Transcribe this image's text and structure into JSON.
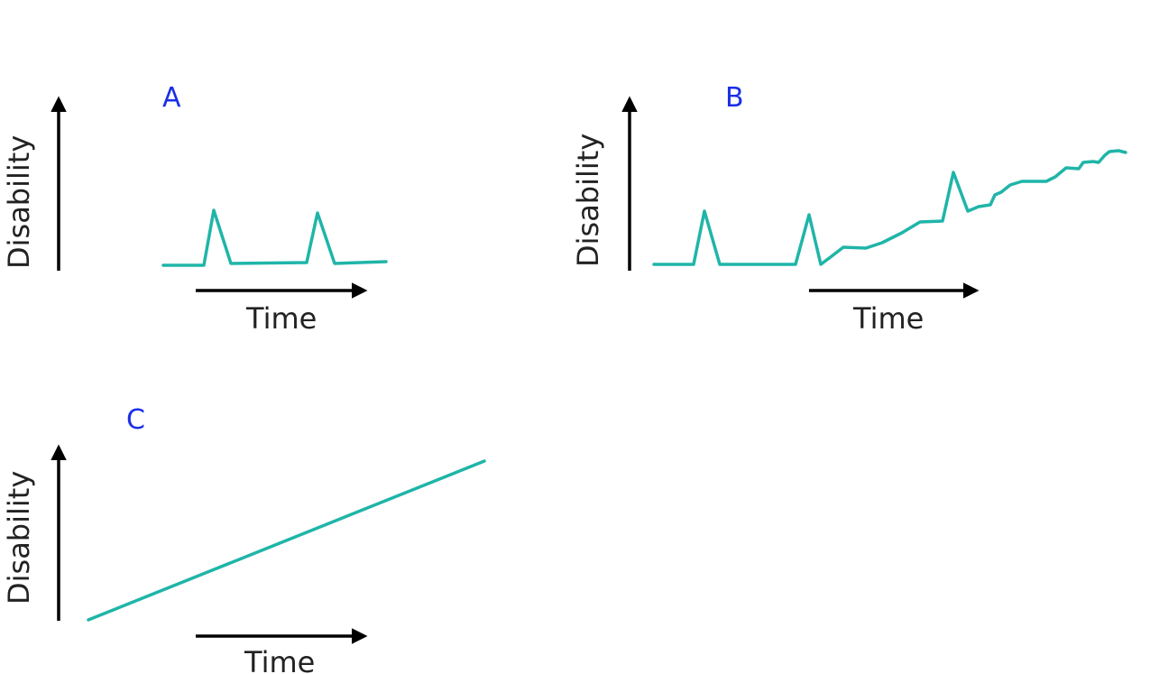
{
  "colors": {
    "curve": "#1fb5a8",
    "axis": "#000000",
    "panel_letter": "#1a2ee8",
    "text": "#222222"
  },
  "panels": [
    {
      "letter": "A",
      "y_axis_label": "Disability",
      "x_axis_label": "Time",
      "pattern": "relapsing-remitting: two relapses with full recovery to baseline"
    },
    {
      "letter": "B",
      "y_axis_label": "Disability",
      "x_axis_label": "Time",
      "pattern": "relapses followed by gradual progressive increase"
    },
    {
      "letter": "C",
      "y_axis_label": "Disability",
      "x_axis_label": "Time",
      "pattern": "steady linear progression from onset"
    }
  ]
}
